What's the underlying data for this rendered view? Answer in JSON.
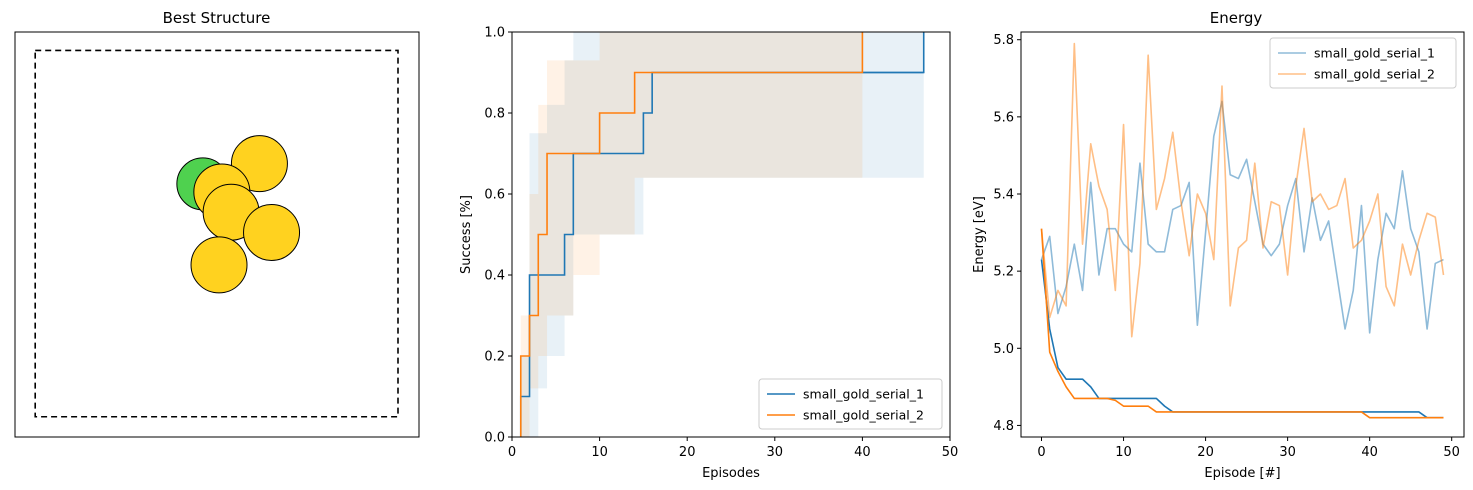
{
  "colors": {
    "blue": "#1f77b4",
    "orange": "#ff7f0e",
    "gold": "#ffd21f",
    "green": "#4fd14f"
  },
  "chart_data": [
    {
      "type": "other",
      "title": "Best Structure",
      "atoms": [
        {
          "x": 0.465,
          "y": 0.375,
          "element": "green"
        },
        {
          "x": 0.605,
          "y": 0.325,
          "element": "gold"
        },
        {
          "x": 0.512,
          "y": 0.395,
          "element": "gold"
        },
        {
          "x": 0.535,
          "y": 0.445,
          "element": "gold"
        },
        {
          "x": 0.635,
          "y": 0.495,
          "element": "gold"
        },
        {
          "x": 0.505,
          "y": 0.575,
          "element": "gold"
        }
      ],
      "cell_box": [
        0.05,
        0.05,
        0.95,
        0.95
      ]
    },
    {
      "type": "line",
      "title": "",
      "xlabel": "Episodes",
      "ylabel": "Success [%]",
      "xlim": [
        0,
        50
      ],
      "ylim": [
        0,
        1.0
      ],
      "xticks": [
        "0",
        "10",
        "20",
        "30",
        "40",
        "50"
      ],
      "yticks": [
        "0.0",
        "0.2",
        "0.4",
        "0.6",
        "0.8",
        "1.0"
      ],
      "legend": "lower-right",
      "series": [
        {
          "name": "small_gold_serial_1",
          "color": "#1f77b4",
          "steps": [
            [
              1,
              0.0
            ],
            [
              1,
              0.1
            ],
            [
              2,
              0.1
            ],
            [
              2,
              0.4
            ],
            [
              6,
              0.4
            ],
            [
              6,
              0.5
            ],
            [
              7,
              0.5
            ],
            [
              7,
              0.7
            ],
            [
              15,
              0.7
            ],
            [
              15,
              0.8
            ],
            [
              16,
              0.8
            ],
            [
              16,
              0.9
            ],
            [
              47,
              0.9
            ]
          ],
          "band": [
            [
              1,
              0.0,
              0.2
            ],
            [
              2,
              0.0,
              0.75
            ],
            [
              3,
              0.12,
              0.75
            ],
            [
              4,
              0.2,
              0.82
            ],
            [
              6,
              0.3,
              0.93
            ],
            [
              7,
              0.5,
              1.0
            ],
            [
              10,
              0.5,
              1.0
            ],
            [
              15,
              0.64,
              1.0
            ],
            [
              16,
              0.64,
              1.0
            ],
            [
              40,
              0.64,
              1.0
            ],
            [
              47,
              0.64,
              1.0
            ]
          ],
          "extra_steps": [
            [
              40,
              0.9
            ],
            [
              47,
              0.9
            ],
            [
              47,
              1.0
            ]
          ]
        },
        {
          "name": "small_gold_serial_2",
          "color": "#ff7f0e",
          "steps": [
            [
              1,
              0.0
            ],
            [
              1,
              0.2
            ],
            [
              2,
              0.2
            ],
            [
              2,
              0.3
            ],
            [
              3,
              0.3
            ],
            [
              3,
              0.5
            ],
            [
              4,
              0.5
            ],
            [
              4,
              0.7
            ],
            [
              10,
              0.7
            ],
            [
              10,
              0.8
            ],
            [
              14,
              0.8
            ],
            [
              14,
              0.9
            ],
            [
              40,
              0.9
            ],
            [
              40,
              1.0
            ]
          ],
          "band": [
            [
              1,
              0.0,
              0.3
            ],
            [
              2,
              0.12,
              0.6
            ],
            [
              3,
              0.2,
              0.82
            ],
            [
              4,
              0.3,
              0.93
            ],
            [
              7,
              0.4,
              0.93
            ],
            [
              10,
              0.5,
              1.0
            ],
            [
              14,
              0.64,
              1.0
            ],
            [
              40,
              0.64,
              1.0
            ]
          ]
        }
      ]
    },
    {
      "type": "line",
      "title": "Energy",
      "xlabel": "Episode [#]",
      "ylabel": "Energy [eV]",
      "xlim": [
        -2.5,
        51.5
      ],
      "ylim": [
        4.77,
        5.82
      ],
      "xticks": [
        "0",
        "10",
        "20",
        "30",
        "40",
        "50"
      ],
      "yticks": [
        "4.8",
        "5.0",
        "5.2",
        "5.4",
        "5.6",
        "5.8"
      ],
      "legend": "top-right",
      "x": [
        0,
        1,
        2,
        3,
        4,
        5,
        6,
        7,
        8,
        9,
        10,
        11,
        12,
        13,
        14,
        15,
        16,
        17,
        18,
        19,
        20,
        21,
        22,
        23,
        24,
        25,
        26,
        27,
        28,
        29,
        30,
        31,
        32,
        33,
        34,
        35,
        36,
        37,
        38,
        39,
        40,
        41,
        42,
        43,
        44,
        45,
        46,
        47,
        48,
        49
      ],
      "series": [
        {
          "name": "small_gold_serial_1",
          "color": "#1f77b4",
          "alpha": 0.5,
          "values": [
            5.23,
            5.29,
            5.09,
            5.16,
            5.27,
            5.15,
            5.43,
            5.19,
            5.31,
            5.31,
            5.27,
            5.25,
            5.48,
            5.27,
            5.25,
            5.25,
            5.36,
            5.37,
            5.43,
            5.06,
            5.3,
            5.55,
            5.64,
            5.45,
            5.44,
            5.49,
            5.38,
            5.27,
            5.24,
            5.27,
            5.37,
            5.44,
            5.25,
            5.39,
            5.28,
            5.33,
            5.19,
            5.05,
            5.15,
            5.37,
            5.04,
            5.23,
            5.35,
            5.31,
            5.46,
            5.31,
            5.25,
            5.05,
            5.22,
            5.23
          ]
        },
        {
          "name": "small_gold_serial_2",
          "color": "#ff7f0e",
          "alpha": 0.5,
          "values": [
            5.31,
            5.08,
            5.15,
            5.11,
            5.79,
            5.27,
            5.53,
            5.42,
            5.36,
            5.15,
            5.58,
            5.03,
            5.22,
            5.76,
            5.36,
            5.44,
            5.56,
            5.38,
            5.24,
            5.4,
            5.35,
            5.23,
            5.68,
            5.11,
            5.26,
            5.28,
            5.48,
            5.26,
            5.38,
            5.37,
            5.19,
            5.42,
            5.57,
            5.38,
            5.4,
            5.36,
            5.37,
            5.44,
            5.26,
            5.28,
            5.33,
            5.4,
            5.16,
            5.11,
            5.27,
            5.19,
            5.28,
            5.35,
            5.34,
            5.19
          ]
        },
        {
          "name": "",
          "color": "#1f77b4",
          "alpha": 1.0,
          "values": [
            5.23,
            5.05,
            4.95,
            4.92,
            4.92,
            4.92,
            4.9,
            4.87,
            4.87,
            4.87,
            4.87,
            4.87,
            4.87,
            4.87,
            4.87,
            4.85,
            4.835,
            4.835,
            4.835,
            4.835,
            4.835,
            4.835,
            4.835,
            4.835,
            4.835,
            4.835,
            4.835,
            4.835,
            4.835,
            4.835,
            4.835,
            4.835,
            4.835,
            4.835,
            4.835,
            4.835,
            4.835,
            4.835,
            4.835,
            4.835,
            4.835,
            4.835,
            4.835,
            4.835,
            4.835,
            4.835,
            4.835,
            4.82,
            4.82,
            4.82
          ]
        },
        {
          "name": "",
          "color": "#ff7f0e",
          "alpha": 1.0,
          "values": [
            5.31,
            4.99,
            4.94,
            4.9,
            4.87,
            4.87,
            4.87,
            4.87,
            4.87,
            4.865,
            4.85,
            4.85,
            4.85,
            4.85,
            4.835,
            4.835,
            4.835,
            4.835,
            4.835,
            4.835,
            4.835,
            4.835,
            4.835,
            4.835,
            4.835,
            4.835,
            4.835,
            4.835,
            4.835,
            4.835,
            4.835,
            4.835,
            4.835,
            4.835,
            4.835,
            4.835,
            4.835,
            4.835,
            4.835,
            4.835,
            4.82,
            4.82,
            4.82,
            4.82,
            4.82,
            4.82,
            4.82,
            4.82,
            4.82,
            4.82
          ]
        }
      ]
    }
  ]
}
